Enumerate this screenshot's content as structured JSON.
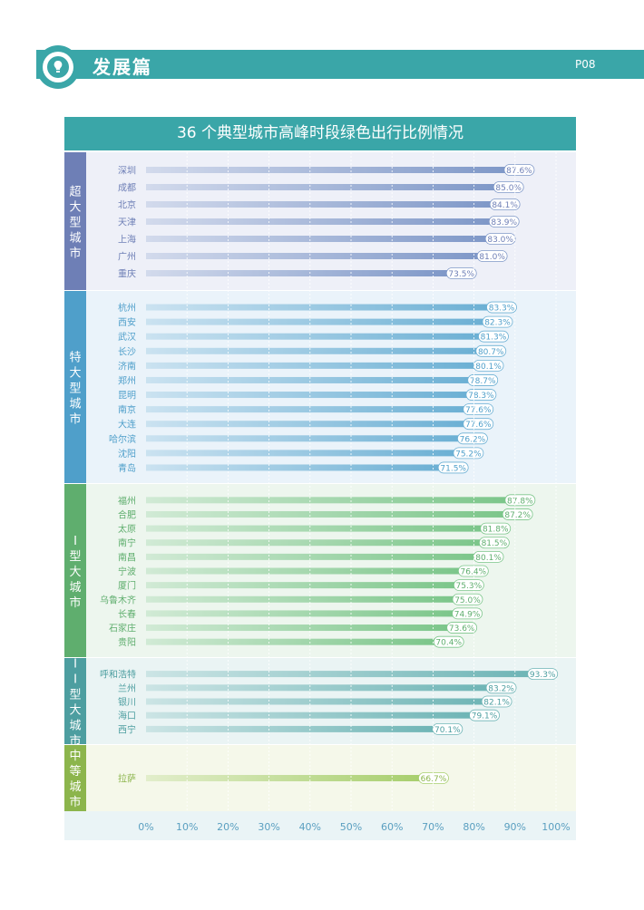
{
  "header": {
    "section_title": "发展篇",
    "page": "P08"
  },
  "chart_data": {
    "type": "bar",
    "orientation": "horizontal",
    "title": "36 个典型城市高峰时段绿色出行比例情况",
    "xlim": [
      0,
      100
    ],
    "x_ticks": [
      "0%",
      "10%",
      "20%",
      "30%",
      "40%",
      "50%",
      "60%",
      "70%",
      "80%",
      "90%",
      "100%"
    ],
    "grid": "vertical",
    "groups": [
      {
        "name": "超大型城市",
        "bg": "#eef0f8",
        "label_color": "#6e7fb6",
        "bar_color": "#7f98c8",
        "cities": [
          "深圳",
          "成都",
          "北京",
          "天津",
          "上海",
          "广州",
          "重庆"
        ],
        "values": [
          87.6,
          85.0,
          84.1,
          83.9,
          83.0,
          81.0,
          73.5
        ],
        "labels": [
          "87.6%",
          "85.0%",
          "84.1%",
          "83.9%",
          "83.0%",
          "81.0%",
          "73.5%"
        ]
      },
      {
        "name": "特大型城市",
        "bg": "#eaf3fa",
        "label_color": "#4f9fca",
        "bar_color": "#6cb0d4",
        "cities": [
          "杭州",
          "西安",
          "武汉",
          "长沙",
          "济南",
          "郑州",
          "昆明",
          "南京",
          "大连",
          "哈尔滨",
          "沈阳",
          "青岛"
        ],
        "values": [
          83.3,
          82.3,
          81.3,
          80.7,
          80.1,
          78.7,
          78.3,
          77.6,
          77.6,
          76.2,
          75.2,
          71.5
        ],
        "labels": [
          "83.3%",
          "82.3%",
          "81.3%",
          "80.7%",
          "80.1%",
          "78.7%",
          "78.3%",
          "77.6%",
          "77.6%",
          "76.2%",
          "75.2%",
          "71.5%"
        ]
      },
      {
        "name": "I型大城市",
        "bg": "#edf6ee",
        "label_color": "#5fae6e",
        "bar_color": "#7cc68a",
        "cities": [
          "福州",
          "合肥",
          "太原",
          "南宁",
          "南昌",
          "宁波",
          "厦门",
          "乌鲁木齐",
          "长春",
          "石家庄",
          "贵阳"
        ],
        "values": [
          87.8,
          87.2,
          81.8,
          81.5,
          80.1,
          76.4,
          75.3,
          75.0,
          74.9,
          73.6,
          70.4
        ],
        "labels": [
          "87.8%",
          "87.2%",
          "81.8%",
          "81.5%",
          "80.1%",
          "76.4%",
          "75.3%",
          "75.0%",
          "74.9%",
          "73.6%",
          "70.4%"
        ]
      },
      {
        "name": "II型大城市",
        "bg": "#eaf4f4",
        "label_color": "#4d9ea0",
        "bar_color": "#6fb5b6",
        "cities": [
          "呼和浩特",
          "兰州",
          "银川",
          "海口",
          "西宁"
        ],
        "values": [
          93.3,
          83.2,
          82.1,
          79.1,
          70.1
        ],
        "labels": [
          "93.3%",
          "83.2%",
          "82.1%",
          "79.1%",
          "70.1%"
        ]
      },
      {
        "name": "中等城市",
        "bg": "#f5f8ea",
        "label_color": "#8cb54c",
        "bar_color": "#a8cf6e",
        "cities": [
          "拉萨"
        ],
        "values": [
          66.7
        ],
        "labels": [
          "66.7%"
        ]
      }
    ]
  }
}
